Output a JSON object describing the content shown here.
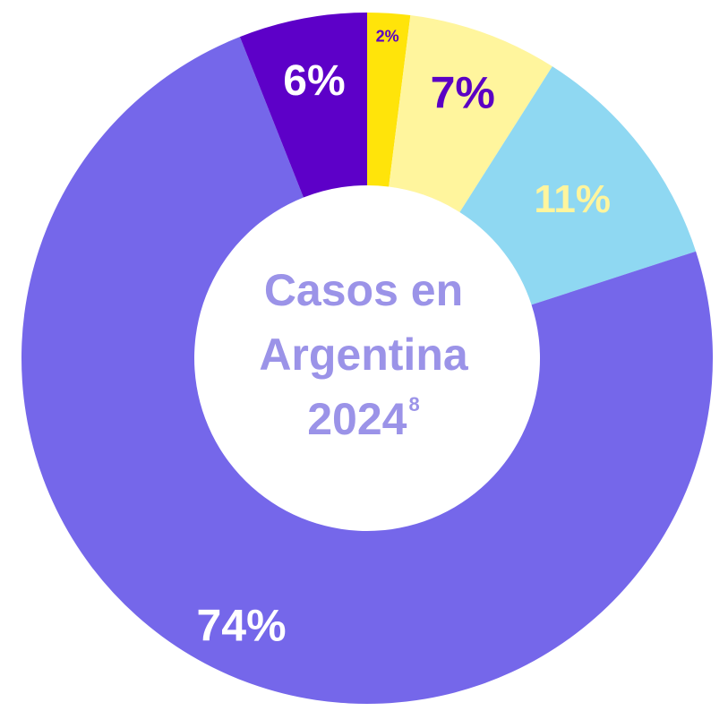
{
  "chart_data": {
    "type": "pie",
    "variant": "donut",
    "title_lines": [
      "Casos en",
      "Argentina"
    ],
    "title_year": "2024",
    "title_footnote": "8",
    "slices": [
      {
        "value": 2,
        "label": "2%",
        "color": "#ffe40a",
        "label_color": "#5b00c4"
      },
      {
        "value": 7,
        "label": "7%",
        "color": "#fff59d",
        "label_color": "#5b00c4"
      },
      {
        "value": 11,
        "label": "11%",
        "color": "#8fd8f2",
        "label_color": "#fff59d"
      },
      {
        "value": 74,
        "label": "74%",
        "color": "#7567ea",
        "label_color": "#ffffff"
      },
      {
        "value": 6,
        "label": "6%",
        "color": "#5d00c8",
        "label_color": "#ffffff"
      }
    ],
    "start_angle_deg": -90,
    "direction": "clockwise",
    "center_text_color": "#9b93e8"
  }
}
